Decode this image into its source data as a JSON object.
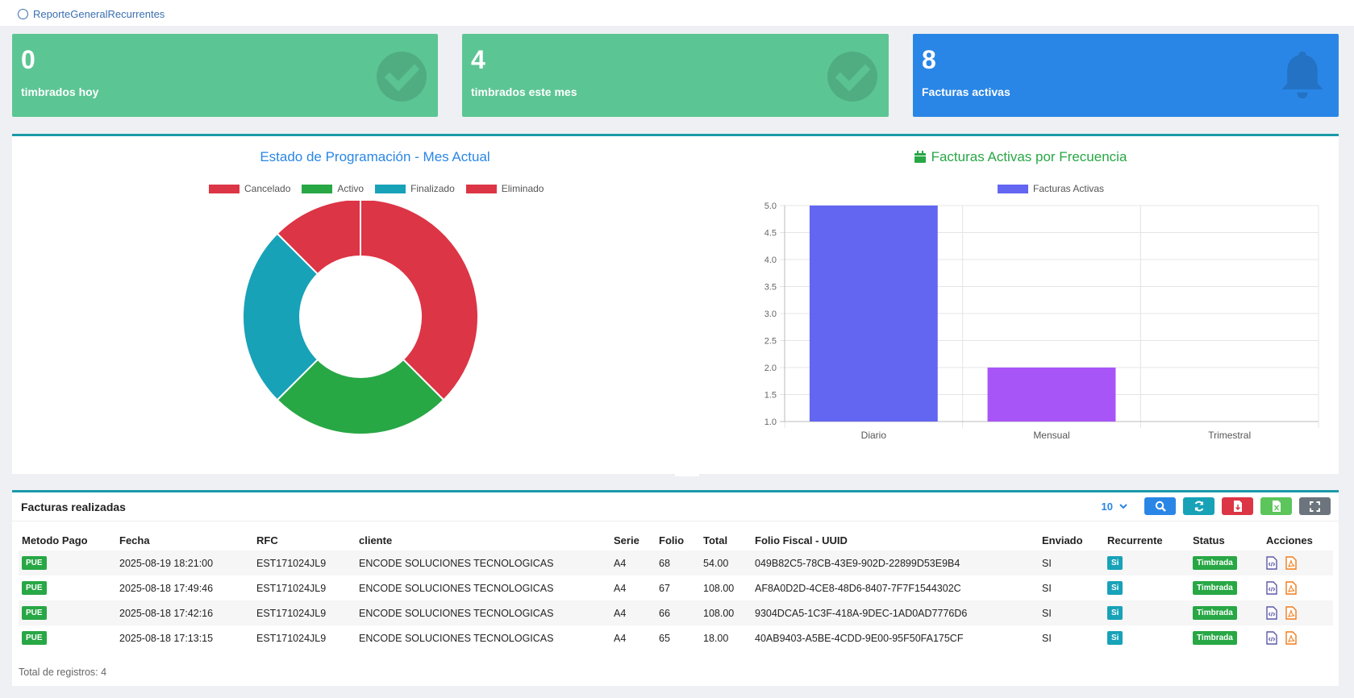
{
  "breadcrumb": {
    "label": "ReporteGeneralRecurrentes"
  },
  "stats": [
    {
      "value": "0",
      "label": "timbrados hoy",
      "color": "#5cc594",
      "icon": "check-circle-icon"
    },
    {
      "value": "4",
      "label": "timbrados este mes",
      "color": "#5cc594",
      "icon": "check-circle-icon"
    },
    {
      "value": "8",
      "label": "Facturas activas",
      "color": "#2a86e6",
      "icon": "bell-icon"
    }
  ],
  "chart_data": [
    {
      "type": "pie",
      "title": "Estado de Programación - Mes Actual",
      "labels": [
        "Cancelado",
        "Activo",
        "Finalizado",
        "Eliminado"
      ],
      "values": [
        3,
        2,
        2,
        1
      ],
      "colors": [
        "#dc3545",
        "#28a745",
        "#17a2b8",
        "#dc3545"
      ],
      "legend": "top"
    },
    {
      "type": "bar",
      "title": "Facturas Activas por Frecuencia",
      "categories": [
        "Diario",
        "Mensual",
        "Trimestral"
      ],
      "series": [
        {
          "name": "Facturas Activas",
          "values": [
            5,
            2,
            1
          ],
          "colors": [
            "#6366f1",
            "#a855f7",
            "#ec4899"
          ]
        }
      ],
      "ylim": [
        1,
        5
      ],
      "yticks": [
        "1.0",
        "1.5",
        "2.0",
        "2.5",
        "3.0",
        "3.5",
        "4.0",
        "4.5",
        "5.0"
      ],
      "grid": true,
      "legend": "top"
    }
  ],
  "table": {
    "title": "Facturas realizadas",
    "page_size": "10",
    "columns": [
      "Metodo Pago",
      "Fecha",
      "RFC",
      "cliente",
      "Serie",
      "Folio",
      "Total",
      "Folio Fiscal - UUID",
      "Enviado",
      "Recurrente",
      "Status",
      "Acciones"
    ],
    "rows": [
      {
        "metodo": "PUE",
        "fecha": "2025-08-19 18:21:00",
        "rfc": "EST171024JL9",
        "cliente": "ENCODE SOLUCIONES TECNOLOGICAS",
        "serie": "A4",
        "folio": "68",
        "total": "54.00",
        "uuid": "049B82C5-78CB-43E9-902D-22899D53E9B4",
        "enviado": "SI",
        "recurrente": "Si",
        "status": "Timbrada"
      },
      {
        "metodo": "PUE",
        "fecha": "2025-08-18 17:49:46",
        "rfc": "EST171024JL9",
        "cliente": "ENCODE SOLUCIONES TECNOLOGICAS",
        "serie": "A4",
        "folio": "67",
        "total": "108.00",
        "uuid": "AF8A0D2D-4CE8-48D6-8407-7F7F1544302C",
        "enviado": "SI",
        "recurrente": "Si",
        "status": "Timbrada"
      },
      {
        "metodo": "PUE",
        "fecha": "2025-08-18 17:42:16",
        "rfc": "EST171024JL9",
        "cliente": "ENCODE SOLUCIONES TECNOLOGICAS",
        "serie": "A4",
        "folio": "66",
        "total": "108.00",
        "uuid": "9304DCA5-1C3F-418A-9DEC-1AD0AD7776D6",
        "enviado": "SI",
        "recurrente": "Si",
        "status": "Timbrada"
      },
      {
        "metodo": "PUE",
        "fecha": "2025-08-18 17:13:15",
        "rfc": "EST171024JL9",
        "cliente": "ENCODE SOLUCIONES TECNOLOGICAS",
        "serie": "A4",
        "folio": "65",
        "total": "18.00",
        "uuid": "40AB9403-A5BE-4CDD-9E00-95F50FA175CF",
        "enviado": "SI",
        "recurrente": "Si",
        "status": "Timbrada"
      }
    ],
    "total_label": "Total de registros: 4"
  }
}
